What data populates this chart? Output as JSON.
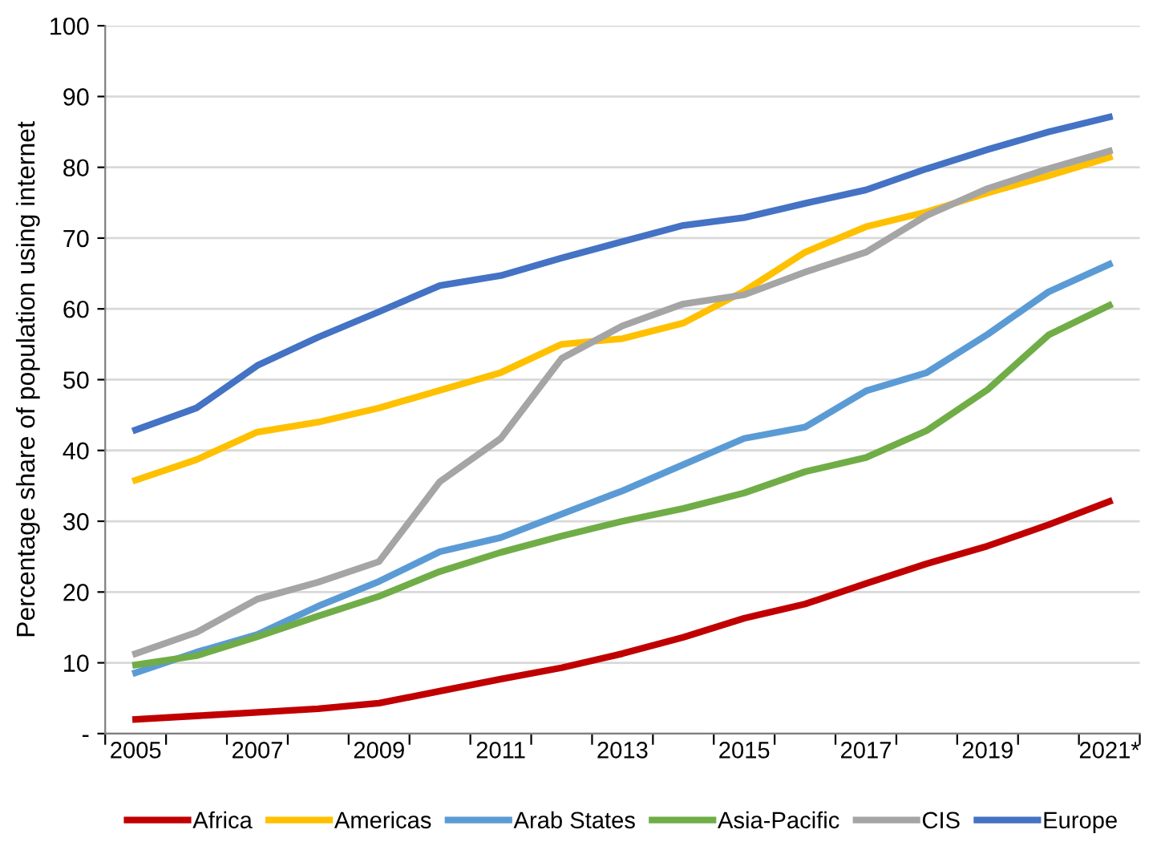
{
  "chart_data": {
    "type": "line",
    "ylabel": "Percentage share of population using internet",
    "categories": [
      "2005",
      null,
      "2007",
      null,
      "2009",
      null,
      "2011",
      null,
      "2013",
      null,
      "2015",
      null,
      "2017",
      null,
      "2019",
      null,
      "2021*"
    ],
    "series": [
      {
        "name": "Africa",
        "color": "#c00000",
        "values": [
          2,
          2.5,
          3,
          3.5,
          4.3,
          6,
          7.7,
          9.3,
          11.3,
          13.6,
          16.3,
          18.3,
          21.2,
          24,
          26.5,
          29.5,
          32.8
        ]
      },
      {
        "name": "Americas",
        "color": "#ffc000",
        "values": [
          35.8,
          38.7,
          42.6,
          44,
          46,
          48.5,
          51,
          55,
          55.8,
          58,
          62.5,
          68,
          71.6,
          73.7,
          76.4,
          78.8,
          81.4
        ]
      },
      {
        "name": "Arab States",
        "color": "#5b9bd5",
        "values": [
          8.6,
          11.5,
          14,
          18,
          21.5,
          25.7,
          27.7,
          31,
          34.3,
          38,
          41.7,
          43.3,
          48.4,
          51,
          56.4,
          62.4,
          66.3
        ]
      },
      {
        "name": "Asia-Pacific",
        "color": "#70ad47",
        "values": [
          9.7,
          11,
          13.7,
          16.6,
          19.4,
          22.9,
          25.6,
          27.9,
          30,
          31.8,
          34,
          37,
          39,
          42.8,
          48.6,
          56.3,
          60.5
        ]
      },
      {
        "name": "CIS",
        "color": "#a5a5a5",
        "values": [
          11.3,
          14.3,
          19,
          21.4,
          24.3,
          35.6,
          41.7,
          53,
          57.6,
          60.7,
          62,
          65.2,
          68,
          73.2,
          77,
          79.8,
          82.3
        ]
      },
      {
        "name": "Europe",
        "color": "#4472c4",
        "values": [
          42.9,
          46,
          52,
          56,
          59.6,
          63.3,
          64.7,
          67.2,
          69.5,
          71.8,
          72.9,
          74.9,
          76.8,
          79.8,
          82.5,
          85,
          87.1
        ]
      }
    ],
    "ylim": [
      0,
      100
    ],
    "yticks": [
      {
        "value": 0,
        "label": "-"
      },
      10,
      20,
      30,
      40,
      50,
      60,
      70,
      80,
      90,
      100
    ],
    "grid": "y",
    "legend": "bottom",
    "marker": "none",
    "line_style": "solid"
  }
}
